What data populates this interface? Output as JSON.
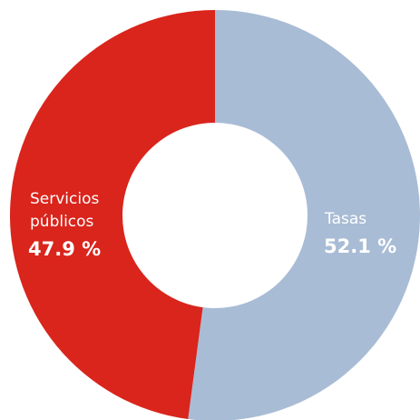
{
  "chart_data": {
    "type": "pie",
    "donut": true,
    "slices": [
      {
        "name": "Tasas",
        "label_lines": [
          "Tasas"
        ],
        "value": 52.1,
        "value_label": "52.1 %",
        "color": "#A9BCD5"
      },
      {
        "name": "Servicios públicos",
        "label_lines": [
          "Servicios",
          "públicos"
        ],
        "value": 47.9,
        "value_label": "47.9 %",
        "color": "#D9251C"
      }
    ],
    "start": "12 o'clock",
    "direction": "clockwise",
    "legend": "none"
  }
}
